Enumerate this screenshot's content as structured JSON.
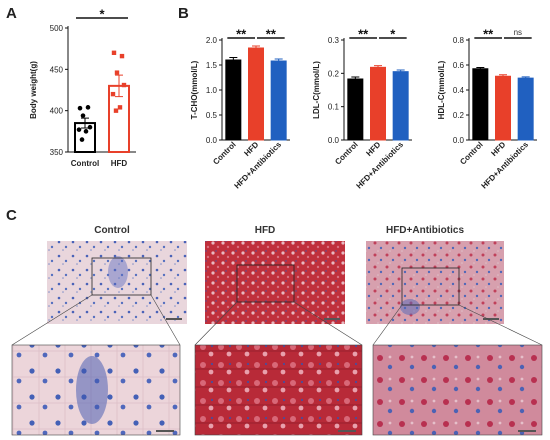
{
  "panel_labels": {
    "a": "A",
    "b": "B",
    "c": "C"
  },
  "colors": {
    "control": "#000000",
    "hfd": "#e8402a",
    "antibiotics": "#2060c0",
    "hist_bg": "#ead8dd",
    "hist_blue": "#3a55b0",
    "hist_red": "#c02a3a"
  },
  "chart_data": [
    {
      "type": "bar",
      "panel": "A",
      "categories": [
        "Control",
        "HFD"
      ],
      "values": [
        385,
        430
      ],
      "errors": [
        6,
        13
      ],
      "points": [
        [
          403,
          404,
          394,
          380,
          377,
          375,
          365
        ],
        [
          470,
          466,
          446,
          431,
          420,
          404,
          400
        ]
      ],
      "ylabel": "Body weight(g)",
      "ylim": [
        350,
        500
      ],
      "yticks": [
        350,
        400,
        450,
        500
      ],
      "significance": [
        {
          "from": 0,
          "to": 1,
          "label": "*"
        }
      ]
    },
    {
      "type": "bar",
      "panel": "B",
      "categories": [
        "Control",
        "HFD",
        "HFD+Antibiotics"
      ],
      "values": [
        1.6,
        1.84,
        1.58
      ],
      "errors": [
        0.05,
        0.04,
        0.04
      ],
      "ylabel": "T-CHO(mmol/L)",
      "ylim": [
        0,
        2.0
      ],
      "yticks": [
        "0.0",
        "0.5",
        "1.0",
        "1.5",
        "2.0"
      ],
      "significance": [
        {
          "from": 0,
          "to": 1,
          "label": "**"
        },
        {
          "from": 1,
          "to": 2,
          "label": "**"
        }
      ]
    },
    {
      "type": "bar",
      "panel": "B",
      "categories": [
        "Control",
        "HFD",
        "HFD+Antibiotics"
      ],
      "values": [
        0.183,
        0.218,
        0.205
      ],
      "errors": [
        0.006,
        0.005,
        0.005
      ],
      "ylabel": "LDL-C(mmol/L)",
      "ylim": [
        0,
        0.3
      ],
      "yticks": [
        "0.0",
        "0.1",
        "0.2",
        "0.3"
      ],
      "significance": [
        {
          "from": 0,
          "to": 1,
          "label": "**"
        },
        {
          "from": 1,
          "to": 2,
          "label": "*"
        }
      ]
    },
    {
      "type": "bar",
      "panel": "B",
      "categories": [
        "Control",
        "HFD",
        "HFD+Antibiotics"
      ],
      "values": [
        0.57,
        0.51,
        0.495
      ],
      "errors": [
        0.01,
        0.012,
        0.01
      ],
      "ylabel": "HDL-C(mmol/L)",
      "ylim": [
        0,
        0.8
      ],
      "yticks": [
        "0.0",
        "0.2",
        "0.4",
        "0.6",
        "0.8"
      ],
      "significance": [
        {
          "from": 0,
          "to": 1,
          "label": "**"
        },
        {
          "from": 1,
          "to": 2,
          "label": "ns"
        }
      ]
    }
  ],
  "histology": {
    "titles": [
      "Control",
      "HFD",
      "HFD+Antibiotics"
    ]
  }
}
